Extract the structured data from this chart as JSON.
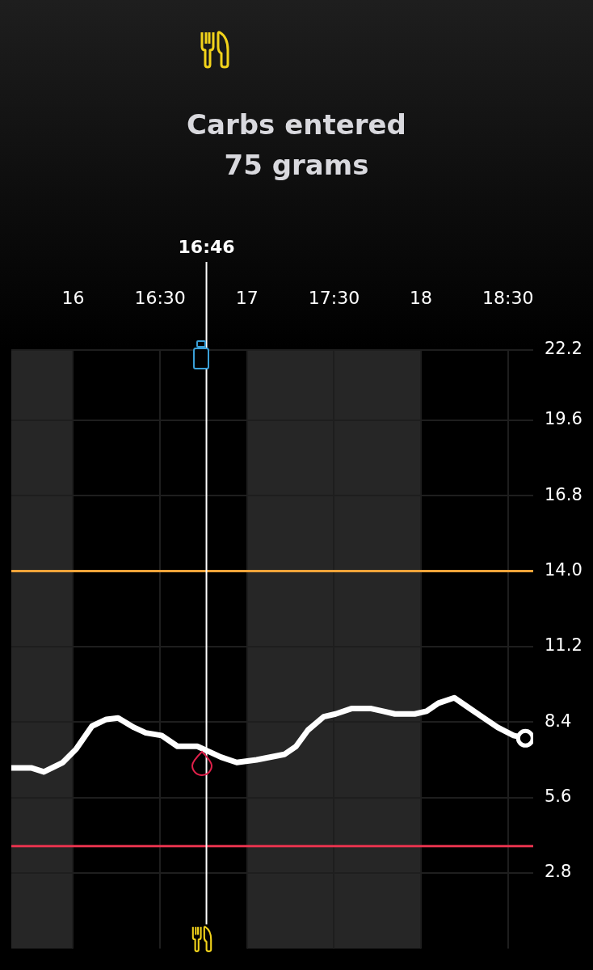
{
  "chart_data": {
    "type": "line",
    "title": "Carbs entered",
    "subtitle": "75 grams",
    "x": [
      15.645,
      15.759,
      15.832,
      15.941,
      16.018,
      16.109,
      16.191,
      16.259,
      16.35,
      16.418,
      16.509,
      16.6,
      16.714,
      16.782,
      16.85,
      16.941,
      17.055,
      17.214,
      17.282,
      17.35,
      17.441,
      17.509,
      17.6,
      17.714,
      17.782,
      17.85,
      17.964,
      18.032,
      18.1,
      18.191,
      18.259,
      18.35,
      18.441,
      18.532,
      18.6
    ],
    "series": [
      {
        "color": "#ffffff",
        "values": [
          6.7,
          6.7,
          6.55,
          6.9,
          7.4,
          8.25,
          8.5,
          8.55,
          8.2,
          8.0,
          7.9,
          7.5,
          7.5,
          7.3,
          7.1,
          6.9,
          7.0,
          7.2,
          7.5,
          8.1,
          8.6,
          8.7,
          8.9,
          8.9,
          8.8,
          8.7,
          8.7,
          8.8,
          9.1,
          9.3,
          9.0,
          8.6,
          8.2,
          7.9,
          7.8
        ]
      }
    ],
    "xlim": [
      15.645,
      18.645
    ],
    "xticks": [
      16,
      {
        "value": 16.5,
        "label": "16:30"
      },
      17,
      {
        "value": 17.5,
        "label": "17:30"
      },
      18,
      {
        "value": 18.5,
        "label": "18:30"
      }
    ],
    "ylim": [
      0,
      22.2
    ],
    "yticks": [
      2.8,
      5.6,
      8.4,
      11.2,
      {
        "value": 14,
        "label": "14.0"
      },
      16.8,
      19.6,
      22.2
    ],
    "grid": true,
    "annotations": [
      "16:46"
    ],
    "ref_lines": [
      {
        "axis": "x",
        "value": 16.766667,
        "color": "#ffffff"
      },
      {
        "axis": "y",
        "value": 14.0,
        "color": "#f0a43a"
      },
      {
        "axis": "y",
        "value": 3.8,
        "color": "#e8334e"
      }
    ],
    "bands": [
      {
        "axis": "x",
        "from": 15.645,
        "to": 16,
        "color": "#262626"
      },
      {
        "axis": "x",
        "from": 17,
        "to": 18,
        "color": "#262626"
      }
    ]
  }
}
